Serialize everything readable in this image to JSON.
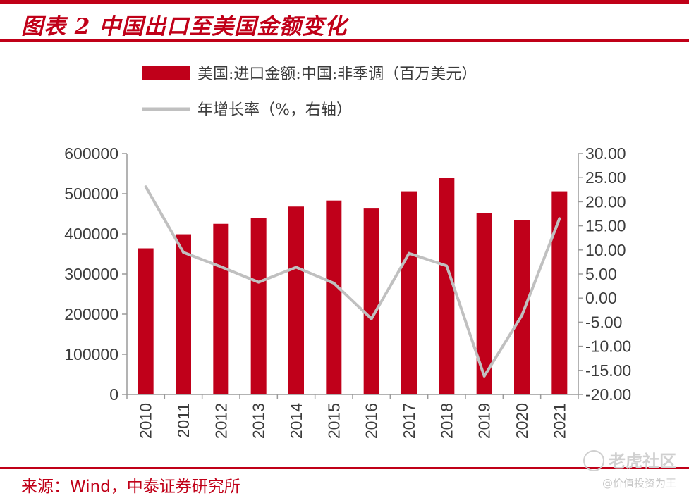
{
  "header": {
    "title": "图表 2 中国出口至美国金额变化"
  },
  "footer": {
    "source_label": "来源：",
    "source_text": "Wind，中泰证券研究所"
  },
  "watermark": {
    "brand": "老虎社区",
    "sub": "@价值投资为王"
  },
  "colors": {
    "brand_red": "#c00018",
    "bar_red": "#c0001a",
    "line_gray": "#c0c0c0",
    "axis_gray": "#9a9a9a"
  },
  "chart_data": {
    "type": "bar",
    "categories": [
      "2010",
      "2011",
      "2012",
      "2013",
      "2014",
      "2015",
      "2016",
      "2017",
      "2018",
      "2019",
      "2020",
      "2021"
    ],
    "series": [
      {
        "name": "美国:进口金额:中国:非季调（百万美元）",
        "type": "bar",
        "axis": "left",
        "values": [
          364000,
          399000,
          425000,
          440000,
          468000,
          483000,
          463000,
          506000,
          539000,
          452000,
          435000,
          506000
        ]
      },
      {
        "name": "年增长率（%，右轴）",
        "type": "line",
        "axis": "right",
        "values": [
          23.1,
          9.5,
          6.5,
          3.3,
          6.4,
          3.1,
          -4.3,
          9.3,
          6.7,
          -16.2,
          -3.6,
          16.5
        ]
      }
    ],
    "y_left": {
      "min": 0,
      "max": 600000,
      "ticks": [
        "0",
        "100000",
        "200000",
        "300000",
        "400000",
        "500000",
        "600000"
      ]
    },
    "y_right": {
      "min": -20,
      "max": 30,
      "ticks": [
        "-20.00",
        "-15.00",
        "-10.00",
        "-5.00",
        "0.00",
        "5.00",
        "10.00",
        "15.00",
        "20.00",
        "25.00",
        "30.00"
      ]
    },
    "legend_position": "top",
    "grid": false
  }
}
